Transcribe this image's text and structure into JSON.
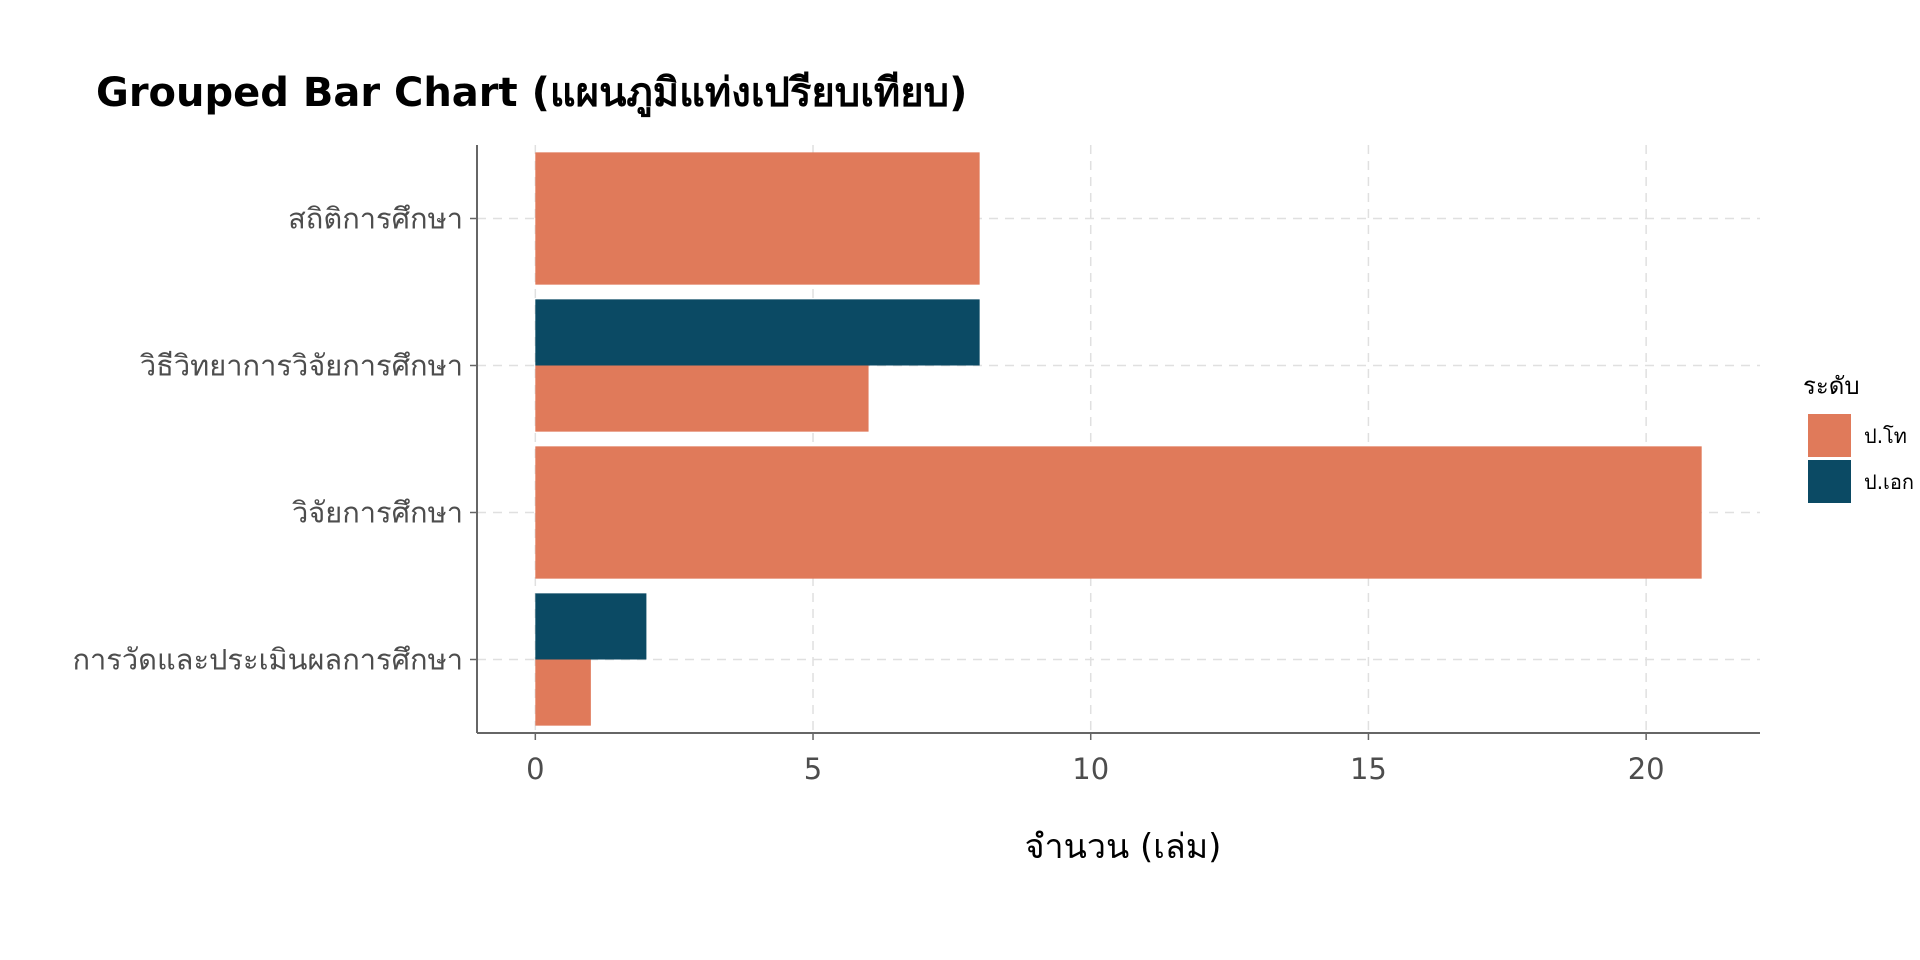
{
  "chart_data": {
    "type": "bar",
    "orientation": "horizontal",
    "title": "Grouped Bar Chart (แผนภูมิแท่งเปรียบเทียบ)",
    "xlabel": "จำนวน (เล่ม)",
    "ylabel": "",
    "categories": [
      "สถิติการศึกษา",
      "วิธีวิทยาการวิจัยการศึกษา",
      "วิจัยการศึกษา",
      "การวัดและประเมินผลการศึกษา"
    ],
    "series": [
      {
        "name": "ป.โท",
        "color": "#E07A5A",
        "values": [
          8,
          6,
          21,
          1
        ]
      },
      {
        "name": "ป.เอก",
        "color": "#0B4A64",
        "values": [
          0,
          8,
          0,
          2
        ]
      }
    ],
    "xlim": [
      -1.05,
      22.05
    ],
    "xticks": [
      0,
      5,
      10,
      15,
      20
    ],
    "legend_title": "ระดับ",
    "legend_position": "right",
    "grid": true
  }
}
